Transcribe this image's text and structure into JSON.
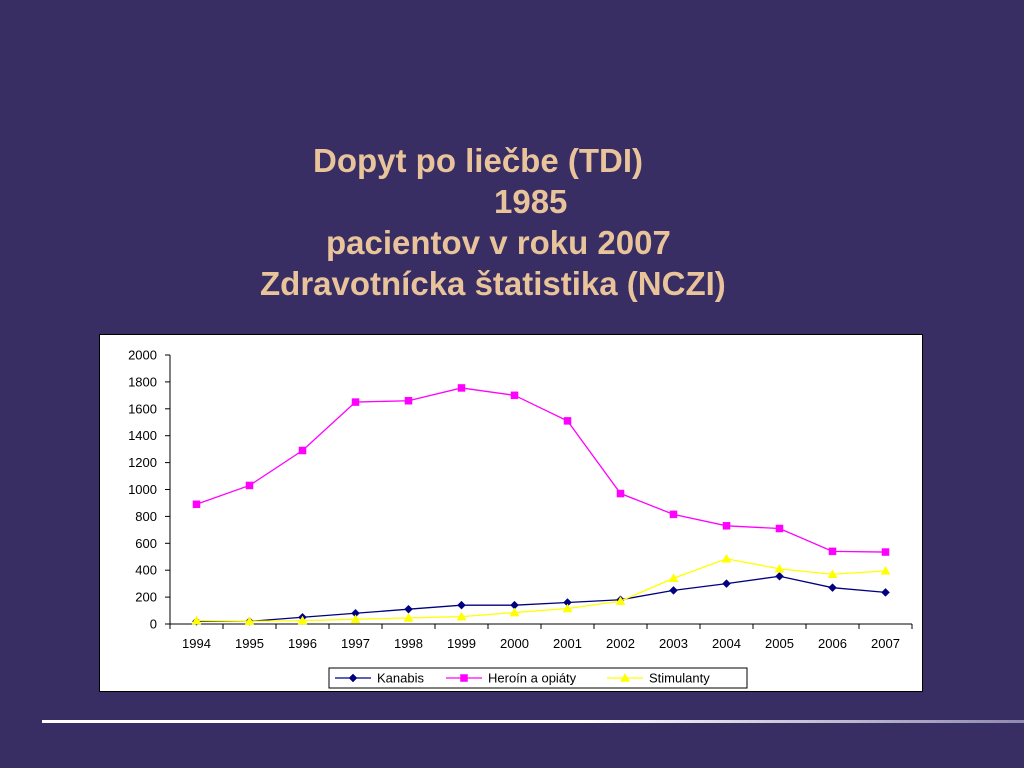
{
  "slide": {
    "title_lines": [
      "Dopyt po liečbe (TDI)",
      "1985",
      "pacientov v roku 2007",
      "Zdravotnícka štatistika (NCZI)"
    ]
  },
  "chart_data": {
    "type": "line",
    "x": [
      "1994",
      "1995",
      "1996",
      "1997",
      "1998",
      "1999",
      "2000",
      "2001",
      "2002",
      "2003",
      "2004",
      "2005",
      "2006",
      "2007"
    ],
    "ylim": [
      0,
      2000
    ],
    "yticks": [
      0,
      200,
      400,
      600,
      800,
      1000,
      1200,
      1400,
      1600,
      1800,
      2000
    ],
    "grid": false,
    "legend_position": "bottom",
    "series": [
      {
        "name": "Kanabis",
        "color": "#000080",
        "marker": "diamond",
        "values": [
          20,
          20,
          50,
          80,
          110,
          140,
          140,
          160,
          180,
          250,
          300,
          355,
          270,
          235
        ]
      },
      {
        "name": "Heroín a opiáty",
        "color": "#ff00ff",
        "marker": "square",
        "values": [
          890,
          1030,
          1290,
          1650,
          1660,
          1755,
          1700,
          1510,
          970,
          815,
          730,
          710,
          540,
          535
        ]
      },
      {
        "name": "Stimulanty",
        "color": "#ffff00",
        "marker": "triangle",
        "values": [
          25,
          20,
          25,
          35,
          45,
          55,
          85,
          115,
          170,
          340,
          485,
          410,
          370,
          395
        ]
      }
    ]
  }
}
